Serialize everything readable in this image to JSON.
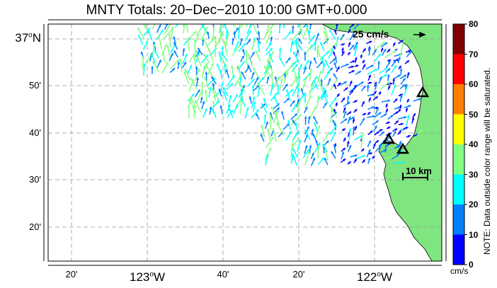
{
  "title": "MNTY Totals: 20−Dec−2010 10:00 GMT+0.000",
  "latitude_labels": [
    {
      "text": "37",
      "deg": "o",
      "hemi": "N",
      "big": true
    },
    {
      "text": "50'"
    },
    {
      "text": "40'"
    },
    {
      "text": "30'"
    },
    {
      "text": "20'"
    }
  ],
  "longitude_labels": [
    {
      "text": "20'"
    },
    {
      "text": "123",
      "deg": "o",
      "hemi": "W",
      "big": true
    },
    {
      "text": "40'"
    },
    {
      "text": "20'"
    },
    {
      "text": "122",
      "deg": "o",
      "hemi": "W",
      "big": true
    }
  ],
  "scale_arrow_label": "25 cm/s",
  "distance_scale_label": "10 km",
  "colorbar": {
    "ticks": [
      "80",
      "70",
      "60",
      "50",
      "40",
      "30",
      "20",
      "10",
      "0"
    ],
    "colors": [
      "#800000",
      "#ff0000",
      "#ff8000",
      "#ffff00",
      "#80ff80",
      "#00ffff",
      "#0080ff",
      "#0000ff"
    ],
    "units": "cm/s",
    "note": "NOTE: Data outside color range will be saturated."
  },
  "colors": {
    "land": "#7fe57f",
    "grid": "#999999",
    "site_marker": "#000000"
  },
  "radar_sites": 3
}
